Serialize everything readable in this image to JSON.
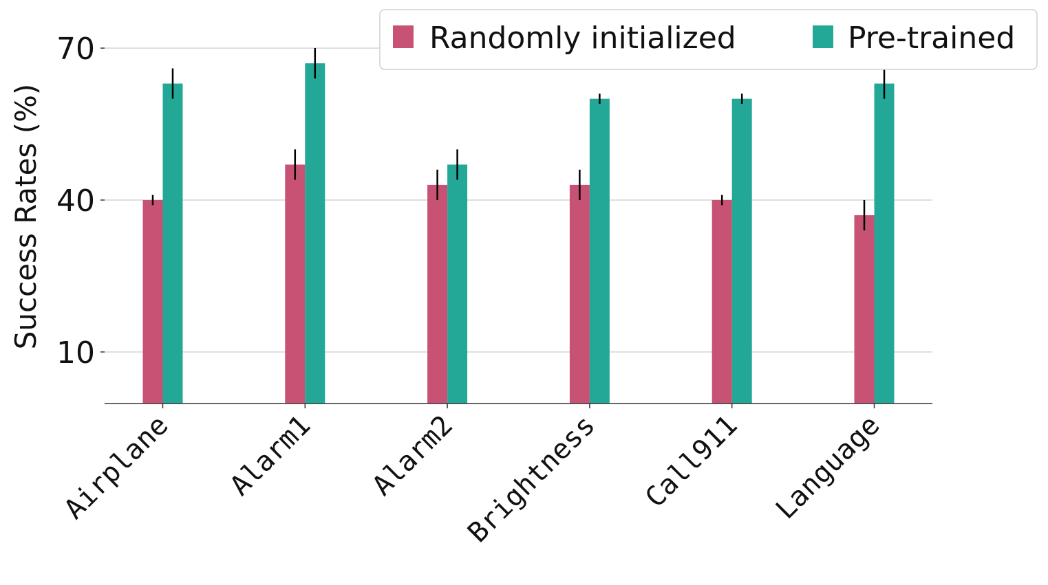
{
  "chart_data": {
    "type": "bar",
    "title": "",
    "xlabel": "",
    "ylabel": "Success Rates (%)",
    "ylim": [
      0,
      70
    ],
    "yticks": [
      10,
      40,
      70
    ],
    "grid": true,
    "legend_position": "top-right",
    "categories": [
      "Airplane",
      "Alarm1",
      "Alarm2",
      "Brightness",
      "Call911",
      "Language"
    ],
    "series": [
      {
        "name": "Randomly initialized",
        "color": "#c85274",
        "values": [
          40,
          47,
          43,
          43,
          40,
          37
        ],
        "errors": [
          1,
          3,
          3,
          3,
          1,
          3
        ]
      },
      {
        "name": "Pre-trained",
        "color": "#23a898",
        "values": [
          63,
          67,
          47,
          60,
          60,
          63
        ],
        "errors": [
          3,
          3,
          3,
          1,
          1,
          3
        ]
      }
    ]
  }
}
